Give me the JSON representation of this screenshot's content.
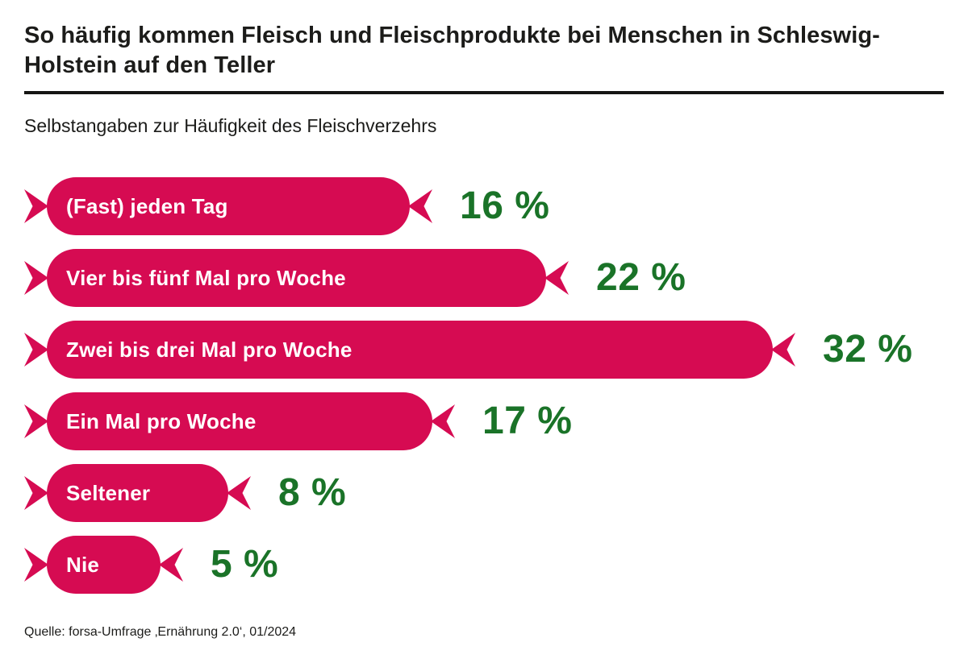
{
  "page": {
    "title": "So häufig kommen Fleisch und Fleischprodukte bei Menschen in Schleswig-Holstein auf den Teller",
    "subtitle": "Selbstangaben zur Häufigkeit des Fleischverzehrs",
    "source": "Quelle: forsa-Umfrage ‚Ernährung 2.0‘, 01/2024"
  },
  "colors": {
    "sausage": "#d60b52",
    "percent_green": "#1a7328",
    "bar_label_text": "#ffffff",
    "text": "#1c1c1a",
    "divider": "#151513",
    "background": "#ffffff"
  },
  "chart_data": {
    "type": "bar",
    "orientation": "horizontal",
    "bar_style": "sausage",
    "title": "So häufig kommen Fleisch und Fleischprodukte bei Menschen in Schleswig-Holstein auf den Teller",
    "subtitle": "Selbstangaben zur Häufigkeit des Fleischverzehrs",
    "source": "Quelle: forsa-Umfrage ‚Ernährung 2.0‘, 01/2024",
    "categories": [
      "(Fast) jeden Tag",
      "Vier bis fünf Mal pro Woche",
      "Zwei bis drei Mal pro Woche",
      "Ein Mal pro Woche",
      "Seltener",
      "Nie"
    ],
    "values": [
      16,
      22,
      32,
      17,
      8,
      5
    ],
    "value_labels": [
      "16 %",
      "22 %",
      "32 %",
      "17 %",
      "8 %",
      "5 %"
    ],
    "unit": "%",
    "xlim": [
      0,
      32
    ],
    "grid": false,
    "legend": false,
    "bar_color": "#d60b52",
    "value_color": "#1a7328"
  }
}
